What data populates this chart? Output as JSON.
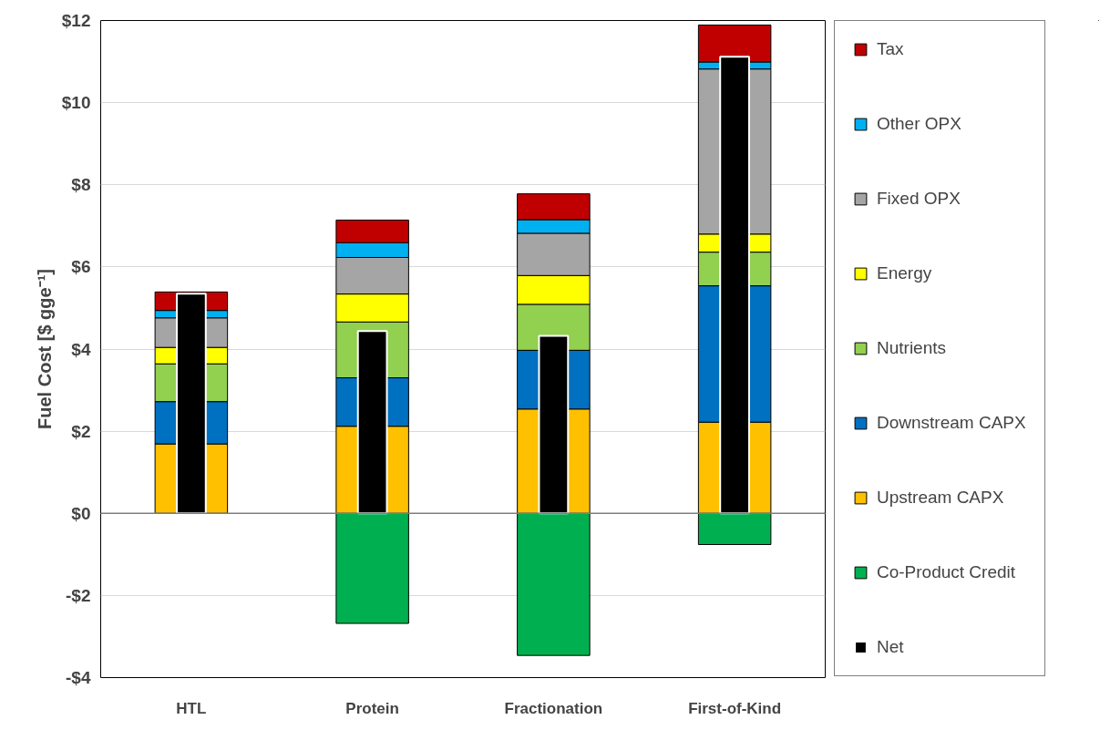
{
  "chart_data": {
    "type": "bar",
    "ylabel": "Fuel Cost [$ gge⁻¹]",
    "categories": [
      "HTL",
      "Protein",
      "Fractionation",
      "First-of-Kind"
    ],
    "series": [
      {
        "name": "Co-Product Credit",
        "color": "#00b050",
        "values": [
          null,
          -2.68,
          -3.46,
          -0.76
        ],
        "base": [
          null,
          0,
          0,
          0
        ]
      },
      {
        "name": "Upstream CAPX",
        "color": "#ffc000",
        "values": [
          1.69,
          2.12,
          2.54,
          2.22
        ],
        "base": [
          0,
          0,
          0,
          0
        ]
      },
      {
        "name": "Downstream CAPX",
        "color": "#0070c0",
        "values": [
          1.03,
          1.18,
          1.43,
          3.32
        ],
        "base": [
          1.69,
          2.12,
          2.54,
          2.22
        ]
      },
      {
        "name": "Nutrients",
        "color": "#92d050",
        "values": [
          0.92,
          1.36,
          1.12,
          0.82
        ],
        "base": [
          2.72,
          3.3,
          3.97,
          5.54
        ]
      },
      {
        "name": "Energy",
        "color": "#ffff00",
        "values": [
          0.4,
          0.68,
          0.7,
          0.44
        ],
        "base": [
          3.64,
          4.66,
          5.09,
          6.36
        ]
      },
      {
        "name": "Fixed OPX",
        "color": "#a5a5a5",
        "values": [
          0.72,
          0.89,
          1.03,
          4.02
        ],
        "base": [
          4.04,
          5.34,
          5.79,
          6.8
        ]
      },
      {
        "name": "Other OPX",
        "color": "#00b0f0",
        "values": [
          0.18,
          0.36,
          0.33,
          0.17
        ],
        "base": [
          4.76,
          6.23,
          6.82,
          10.82
        ]
      },
      {
        "name": "Tax",
        "color": "#c00000",
        "values": [
          0.45,
          0.55,
          0.63,
          0.9
        ],
        "base": [
          4.94,
          6.59,
          7.15,
          10.99
        ]
      },
      {
        "name": "Net",
        "color": "#000000",
        "values": [
          5.35,
          4.44,
          4.32,
          11.12
        ]
      }
    ],
    "ylim": [
      -4,
      12
    ],
    "yticks": [
      {
        "value": -4,
        "label": "-$4"
      },
      {
        "value": -2,
        "label": "-$2"
      },
      {
        "value": 0,
        "label": "$0"
      },
      {
        "value": 2,
        "label": "$2"
      },
      {
        "value": 4,
        "label": "$4"
      },
      {
        "value": 6,
        "label": "$6"
      },
      {
        "value": 8,
        "label": "$8"
      },
      {
        "value": 10,
        "label": "$10"
      },
      {
        "value": 12,
        "label": "$12"
      }
    ],
    "ref_lines": [
      {
        "axis": "y",
        "value": 0
      }
    ],
    "grid": "y",
    "legend": "right"
  }
}
